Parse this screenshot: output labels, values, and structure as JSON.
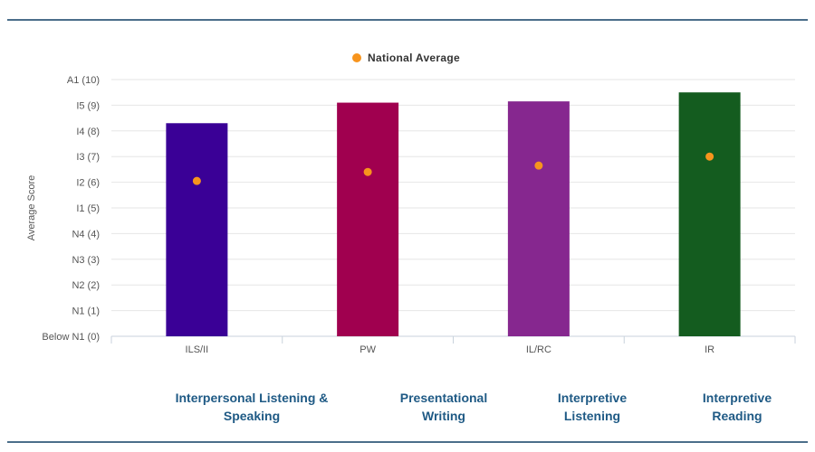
{
  "top_strip": {
    "fragments": [
      "",
      "",
      "",
      ""
    ]
  },
  "chart_data": {
    "type": "bar",
    "title": "",
    "xlabel": "",
    "ylabel": "Average Score",
    "ylim": [
      0,
      10
    ],
    "y_tick_labels": [
      "Below N1 (0)",
      "N1 (1)",
      "N2 (2)",
      "N3 (3)",
      "N4 (4)",
      "I1 (5)",
      "I2 (6)",
      "I3 (7)",
      "I4 (8)",
      "I5 (9)",
      "A1 (10)"
    ],
    "categories": [
      "ILS/II",
      "PW",
      "IL/RC",
      "IR"
    ],
    "series": [
      {
        "name": "Average Score",
        "values": [
          8.3,
          9.1,
          9.15,
          9.5
        ],
        "colors": [
          "#3a0096",
          "#a0004f",
          "#86278f",
          "#145c1f"
        ]
      },
      {
        "name": "National Average",
        "values": [
          6.05,
          6.4,
          6.65,
          7.0
        ],
        "color": "#f7941d",
        "marker": "circle"
      }
    ],
    "legend": [
      "National Average"
    ],
    "legend_position": "top-center",
    "grid": true
  },
  "skill_labels": [
    [
      "Interpersonal Listening &",
      "Speaking"
    ],
    [
      "Presentational",
      "Writing"
    ],
    [
      "Interpretive",
      "Listening"
    ],
    [
      "Interpretive",
      "Reading"
    ]
  ]
}
